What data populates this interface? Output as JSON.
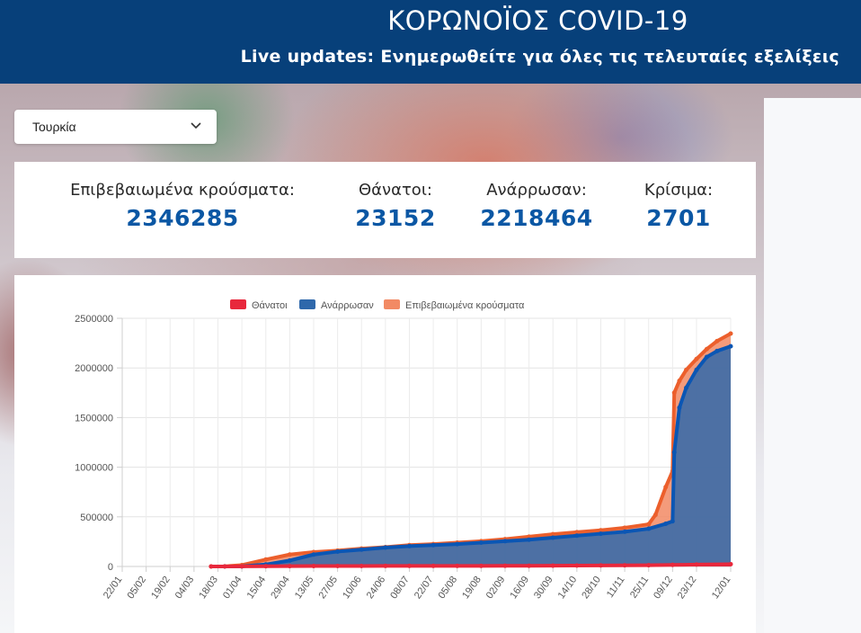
{
  "header": {
    "title": "ΚΟΡΩΝΟΪΟΣ COVID-19",
    "subtitle": "Live updates: Ενημερωθείτε για όλες τις τελευταίες εξελίξεις"
  },
  "country_select": {
    "selected": "Τουρκία",
    "icon": "chevron-down-icon"
  },
  "stats": [
    {
      "label": "Επιβεβαιωμένα κρούσματα:",
      "value": "2346285"
    },
    {
      "label": "Θάνατοι:",
      "value": "23152"
    },
    {
      "label": "Ανάρρωσαν:",
      "value": "2218464"
    },
    {
      "label": "Κρίσιμα:",
      "value": "2701"
    }
  ],
  "colors": {
    "header_bg": "#07407a",
    "stat_value": "#0b57a4",
    "deaths": "#e8283c",
    "recovered": "#2f68ab",
    "recovered_line": "#0a56b4",
    "confirmed": "#f28a64",
    "confirmed_line": "#ec5f2c"
  },
  "chart_data": {
    "type": "area",
    "legend_position": "top",
    "grid": true,
    "ylim": [
      0,
      2500000
    ],
    "yticks": [
      "0",
      "500000",
      "1000000",
      "1500000",
      "2000000",
      "2500000"
    ],
    "x_tick_labels": [
      "22/01",
      "05/02",
      "19/02",
      "04/03",
      "18/03",
      "01/04",
      "15/04",
      "29/04",
      "13/05",
      "27/05",
      "10/06",
      "24/06",
      "08/07",
      "22/07",
      "05/08",
      "19/08",
      "02/09",
      "16/09",
      "30/09",
      "14/10",
      "28/10",
      "11/11",
      "25/11",
      "09/12",
      "23/12",
      "12/01"
    ],
    "x_tick_index": [
      0,
      14,
      28,
      42,
      56,
      70,
      84,
      98,
      112,
      126,
      140,
      154,
      168,
      182,
      196,
      210,
      224,
      238,
      252,
      266,
      280,
      294,
      308,
      322,
      336,
      356
    ],
    "x_max_index": 356,
    "series": [
      {
        "name": "Θάνατοι",
        "x": [
          0,
          52,
          60,
          70,
          84,
          98,
          112,
          126,
          140,
          154,
          168,
          182,
          196,
          210,
          224,
          238,
          252,
          266,
          280,
          294,
          308,
          322,
          336,
          356
        ],
        "y": [
          0,
          0,
          200,
          600,
          2000,
          3200,
          4000,
          4400,
          4700,
          5100,
          5400,
          5600,
          5800,
          6100,
          6500,
          7000,
          8400,
          9000,
          10000,
          11000,
          13000,
          15500,
          19000,
          23152
        ]
      },
      {
        "name": "Ανάρρωσαν",
        "x": [
          0,
          52,
          60,
          70,
          84,
          98,
          112,
          126,
          140,
          154,
          168,
          182,
          196,
          210,
          224,
          238,
          252,
          266,
          280,
          294,
          308,
          318,
          322,
          323,
          326,
          330,
          336,
          342,
          348,
          356
        ],
        "y": [
          0,
          0,
          0,
          1000,
          20000,
          60000,
          120000,
          150000,
          170000,
          190000,
          205000,
          215000,
          225000,
          240000,
          255000,
          270000,
          290000,
          310000,
          330000,
          350000,
          380000,
          430000,
          455000,
          1150000,
          1600000,
          1800000,
          1980000,
          2110000,
          2170000,
          2218464
        ]
      },
      {
        "name": "Επιβεβαιωμένα κρούσματα",
        "x": [
          0,
          52,
          60,
          70,
          84,
          98,
          112,
          126,
          140,
          154,
          168,
          182,
          196,
          210,
          224,
          238,
          252,
          266,
          280,
          294,
          308,
          312,
          318,
          322,
          323,
          326,
          330,
          336,
          342,
          348,
          356
        ],
        "y": [
          0,
          0,
          1500,
          14000,
          70000,
          120000,
          145000,
          160000,
          180000,
          195000,
          215000,
          225000,
          240000,
          255000,
          275000,
          300000,
          325000,
          345000,
          365000,
          390000,
          425000,
          520000,
          800000,
          960000,
          1750000,
          1870000,
          1980000,
          2090000,
          2190000,
          2270000,
          2346285
        ]
      }
    ]
  }
}
